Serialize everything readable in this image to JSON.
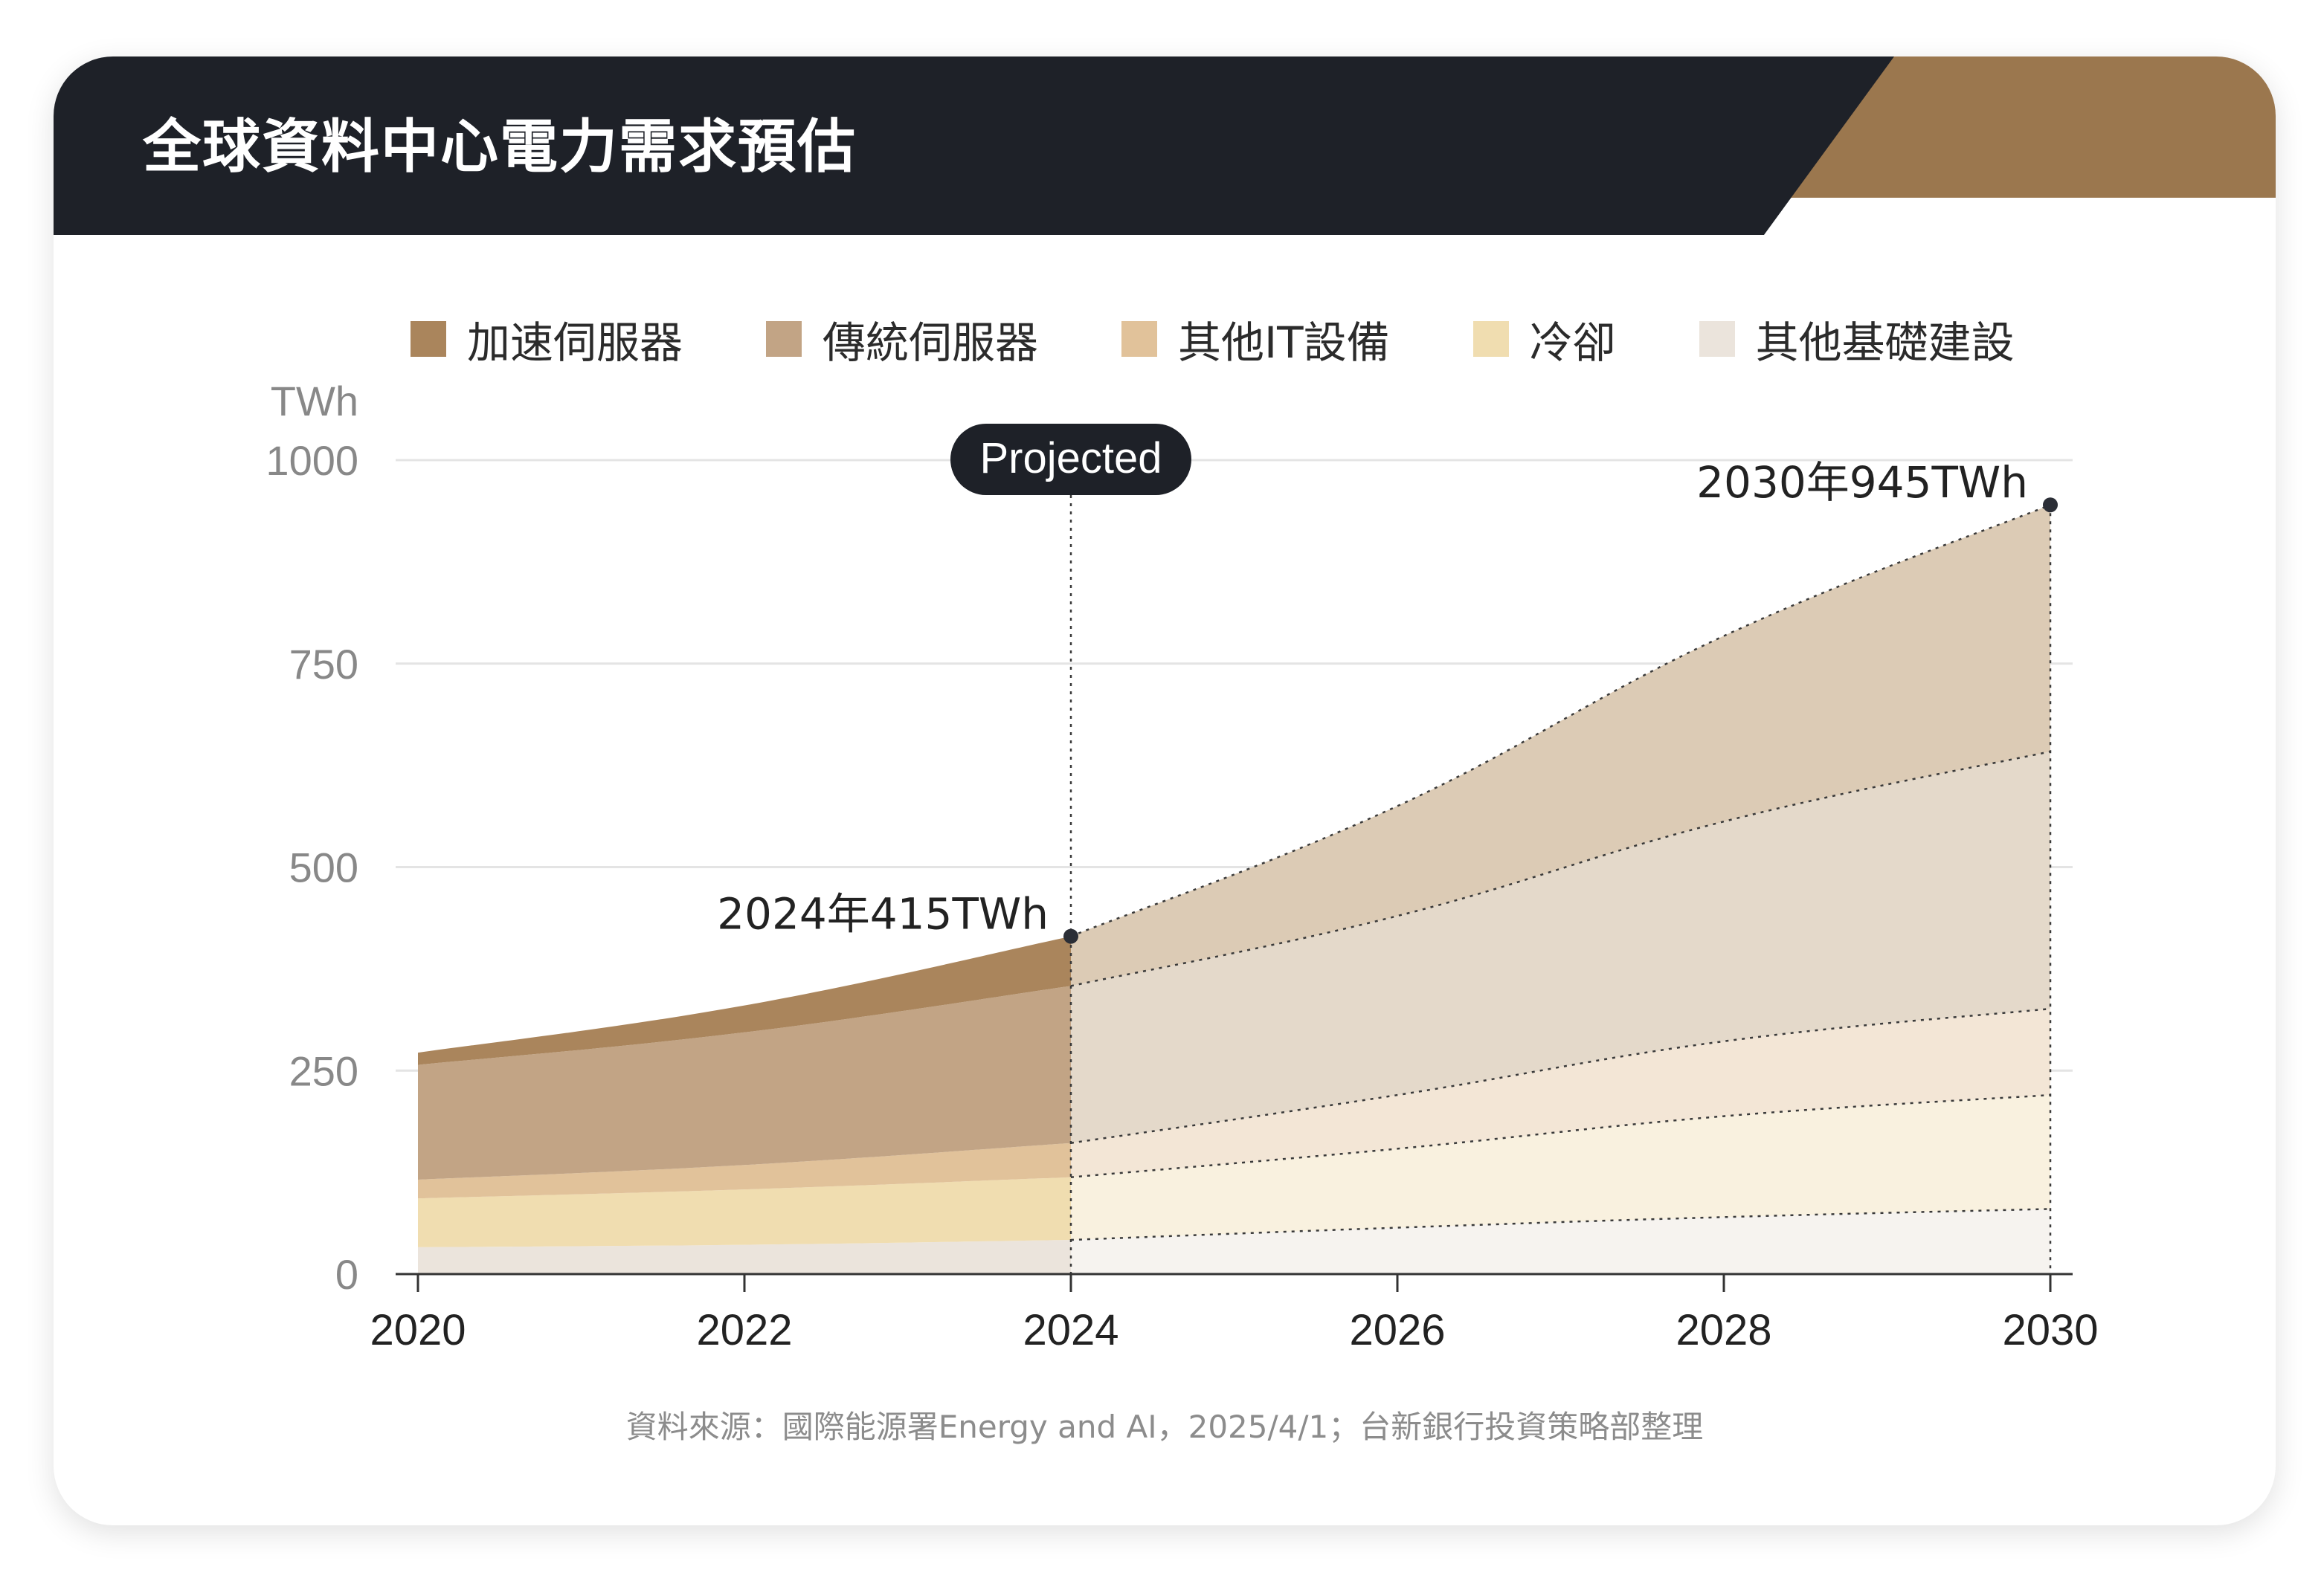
{
  "title": "全球資料中心電力需求預估",
  "colors": {
    "header_dark": "#1e2128",
    "header_accent": "#9b774e",
    "grid": "#e4e4e4",
    "axis": "#333333",
    "tick_label": "#888888",
    "annotation_text": "#222222"
  },
  "source": "資料來源：國際能源署Energy and AI，2025/4/1；台新銀行投資策略部整理",
  "chart_data": {
    "type": "area",
    "stacked": true,
    "ylabel": "TWh",
    "xlim": [
      2020,
      2030
    ],
    "ylim": [
      0,
      1000
    ],
    "yticks": [
      "0",
      "250",
      "500",
      "750",
      "1000"
    ],
    "xticks": [
      "2020",
      "2022",
      "2024",
      "2026",
      "2028",
      "2030"
    ],
    "x": [
      2020,
      2022,
      2024,
      2026,
      2028,
      2030
    ],
    "projected_from": 2024,
    "projected_label": "Projected",
    "series": [
      {
        "name": "其他基礎建設",
        "color": "#ebe4dc",
        "projected_color": "#f6f3ef",
        "values": [
          33,
          36,
          42,
          57,
          70,
          80
        ]
      },
      {
        "name": "冷卻",
        "color": "#f0ddb0",
        "projected_color": "#f9f1df",
        "values": [
          60,
          68,
          77,
          97,
          124,
          140
        ]
      },
      {
        "name": "其他IT設備",
        "color": "#e1c29a",
        "projected_color": "#f3e6d6",
        "values": [
          23,
          30,
          42,
          66,
          92,
          106
        ]
      },
      {
        "name": "傳統伺服器",
        "color": "#c2a485",
        "projected_color": "#e4d9ca",
        "values": [
          141,
          163,
          193,
          220,
          270,
          316
        ]
      },
      {
        "name": "加速伺服器",
        "color": "#aa855c",
        "projected_color": "#dccbb5",
        "values": [
          15,
          33,
          61,
          135,
          228,
          303
        ]
      }
    ],
    "annotations": [
      {
        "x": 2024,
        "y": 415,
        "text": "2024年415TWh"
      },
      {
        "x": 2030,
        "y": 945,
        "text": "2030年945TWh"
      }
    ]
  }
}
